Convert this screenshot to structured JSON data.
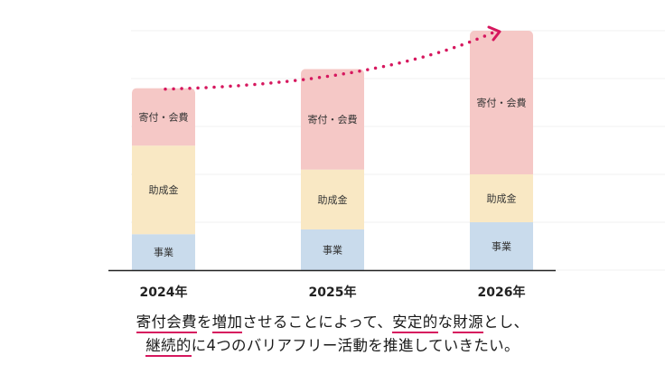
{
  "chart_data": {
    "type": "bar",
    "stacked": true,
    "categories": [
      "2024年",
      "2025年",
      "2026年"
    ],
    "series": [
      {
        "name": "事業",
        "values": [
          15,
          17,
          20
        ],
        "color": "#c9dbec"
      },
      {
        "name": "助成金",
        "values": [
          37,
          25,
          20
        ],
        "color": "#f9e8c4"
      },
      {
        "name": "寄付・会費",
        "values": [
          24,
          42,
          60
        ],
        "color": "#f5c8c6"
      }
    ],
    "ylim": [
      0,
      100
    ],
    "value_scale": "relative (no axis values printed)",
    "grid": true,
    "trend_arrow": {
      "style": "dotted",
      "color": "#d6175e"
    }
  },
  "caption": {
    "line1": [
      {
        "text": "寄付会費",
        "underline": true
      },
      {
        "text": "を"
      },
      {
        "text": "増加",
        "underline": true
      },
      {
        "text": "させることによって、"
      },
      {
        "text": "安定的",
        "underline": true
      },
      {
        "text": "な"
      },
      {
        "text": "財源",
        "underline": true
      },
      {
        "text": "とし、"
      }
    ],
    "line2": [
      {
        "text": "継続的",
        "underline": true
      },
      {
        "text": "に4つのバリアフリー活動を推進していきたい。"
      }
    ]
  }
}
